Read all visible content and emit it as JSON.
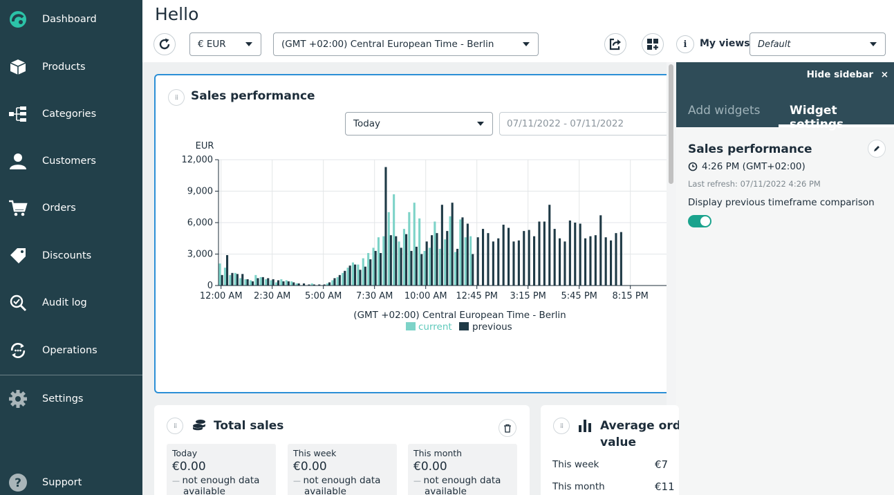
{
  "nav": {
    "items": [
      {
        "label": "Dashboard",
        "icon": "logo-icon"
      },
      {
        "label": "Products",
        "icon": "box-icon"
      },
      {
        "label": "Categories",
        "icon": "tree-icon"
      },
      {
        "label": "Customers",
        "icon": "user-icon"
      },
      {
        "label": "Orders",
        "icon": "cart-icon"
      },
      {
        "label": "Discounts",
        "icon": "tag-icon"
      },
      {
        "label": "Audit log",
        "icon": "audit-icon"
      },
      {
        "label": "Operations",
        "icon": "operations-icon"
      },
      {
        "label": "Settings",
        "icon": "gear-icon"
      },
      {
        "label": "Support",
        "icon": "help-icon"
      }
    ]
  },
  "header": {
    "title": "Hello",
    "currency": "€ EUR",
    "timezone": "(GMT +02:00) Central European Time - Berlin",
    "my_views_label": "My views",
    "my_views_value": "Default",
    "info_label": "i"
  },
  "sales_widget": {
    "title": "Sales performance",
    "period": "Today",
    "date_range": "07/11/2022 - 07/11/2022"
  },
  "chart_data": {
    "type": "bar",
    "ylabel": "EUR",
    "xlabel": "(GMT +02:00) Central European Time - Berlin",
    "ylim": [
      0,
      12000
    ],
    "yticks": [
      0,
      3000,
      6000,
      9000,
      12000
    ],
    "ytick_labels": [
      "0",
      "3,000",
      "6,000",
      "9,000",
      "12,000"
    ],
    "xtick_labels": [
      "12:00 AM",
      "2:30 AM",
      "5:00 AM",
      "7:30 AM",
      "10:00 AM",
      "12:45 PM",
      "3:15 PM",
      "5:45 PM",
      "8:15 PM"
    ],
    "x_interval_minutes": 15,
    "grid": true,
    "legend": "bottom",
    "series": [
      {
        "name": "current",
        "color": "#7dd3c8",
        "values": [
          2100,
          1700,
          1000,
          1200,
          700,
          600,
          500,
          1000,
          800,
          600,
          500,
          300,
          600,
          500,
          400,
          200,
          0,
          0,
          200,
          0,
          0,
          200,
          500,
          800,
          1200,
          1700,
          2200,
          2000,
          2600,
          3100,
          3600,
          4600,
          4700,
          7000,
          8700,
          4200,
          5400,
          7000,
          7900,
          6400,
          3300,
          3600,
          6100,
          3500,
          4400,
          6600,
          3200,
          6300,
          4600,
          4700
        ]
      },
      {
        "name": "previous",
        "color": "#1f3a46",
        "values": [
          1000,
          2900,
          1200,
          1100,
          1100,
          600,
          400,
          700,
          800,
          700,
          600,
          500,
          400,
          400,
          300,
          200,
          200,
          100,
          100,
          100,
          100,
          300,
          700,
          1000,
          1400,
          1900,
          2000,
          1500,
          1800,
          2500,
          3300,
          3100,
          11300,
          4800,
          4700,
          3600,
          4900,
          3300,
          3700,
          3000,
          4200,
          4800,
          5000,
          7700,
          5200,
          7900,
          3500,
          6500,
          5900,
          3000,
          4600,
          5400,
          5000,
          4200,
          4500,
          5800,
          5500,
          4200,
          4300,
          5200,
          5300,
          4700,
          6100,
          6100,
          7700,
          5400,
          4500,
          4200,
          6200,
          6000,
          5900,
          4500,
          4700,
          4800,
          6700,
          4600,
          4300,
          5000,
          5100
        ]
      }
    ]
  },
  "right_sidebar": {
    "hide_label": "Hide sidebar",
    "close_symbol": "×",
    "tabs": [
      "Add widgets",
      "Widget settings"
    ],
    "widget_title": "Sales performance",
    "time": "4:26 PM (GMT+02:00)",
    "last_refresh": "Last refresh: 07/11/2022 4:26 PM",
    "compare_label": "Display previous timeframe comparison",
    "compare_on": true
  },
  "total_sales": {
    "title": "Total sales",
    "boxes": [
      {
        "label": "Today",
        "value": "€0.00",
        "note": "not enough data",
        "note2": "available"
      },
      {
        "label": "This week",
        "value": "€0.00",
        "note": "not enough data",
        "note2": "available"
      },
      {
        "label": "This month",
        "value": "€0.00",
        "note": "not enough data",
        "note2": "available"
      }
    ]
  },
  "avg_order": {
    "title_line1": "Average ord",
    "title_line2": "value",
    "rows": [
      {
        "label": "This week",
        "value": "€7"
      },
      {
        "label": "This month",
        "value": "€11"
      }
    ]
  }
}
